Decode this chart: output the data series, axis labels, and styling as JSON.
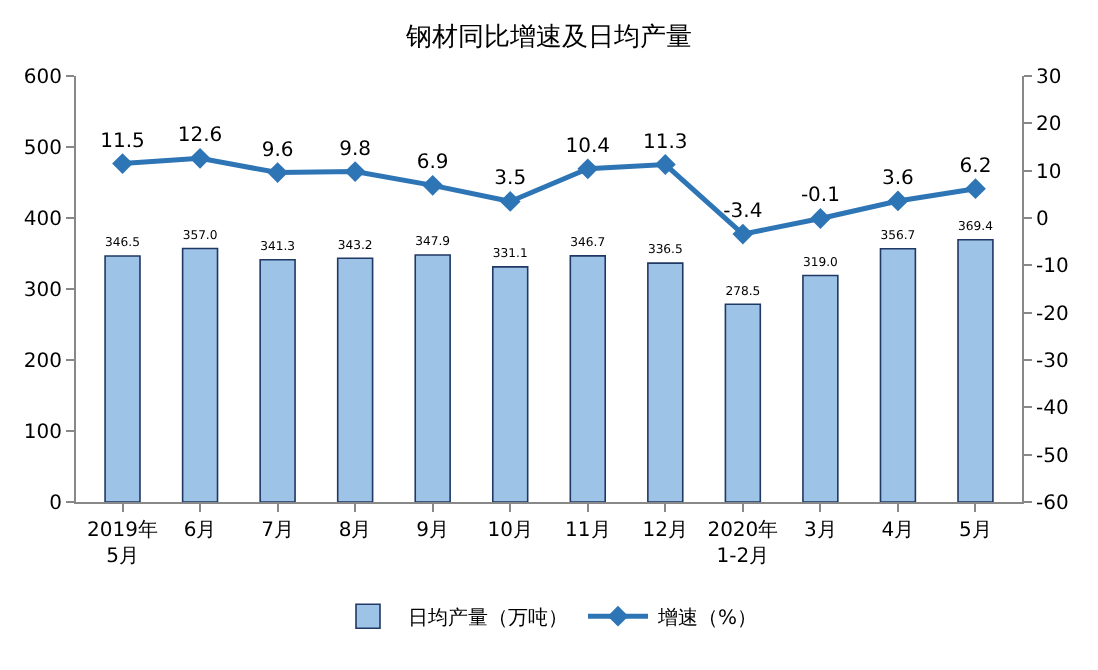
{
  "chart_data": {
    "type": "bar",
    "title": "钢材同比增速及日均产量",
    "categories": [
      "2019年\n5月",
      "6月",
      "7月",
      "8月",
      "9月",
      "10月",
      "11月",
      "12月",
      "2020年\n1-2月",
      "3月",
      "4月",
      "5月"
    ],
    "series": [
      {
        "name": "日均产量（万吨）",
        "color": "#9dc3e6",
        "values": [
          346.5,
          357.0,
          341.3,
          343.2,
          347.9,
          331.1,
          346.7,
          336.5,
          278.5,
          319.0,
          356.7,
          369.4
        ],
        "value_labels": [
          "346.5",
          "357.0",
          "341.3",
          "343.2",
          "347.9",
          "331.1",
          "346.7",
          "336.5",
          "278.5",
          "319.0",
          "356.7",
          "369.4"
        ]
      },
      {
        "name": "增速（%）",
        "type": "line",
        "axis": "y2",
        "color": "#2e75b6",
        "marker": "diamond",
        "values": [
          11.5,
          12.6,
          9.6,
          9.8,
          6.9,
          3.5,
          10.4,
          11.3,
          -3.4,
          -0.1,
          3.6,
          6.2
        ],
        "value_labels": [
          "11.5",
          "12.6",
          "9.6",
          "9.8",
          "6.9",
          "3.5",
          "10.4",
          "11.3",
          "-3.4",
          "-0.1",
          "3.6",
          "6.2"
        ]
      }
    ],
    "ylim": [
      0,
      600
    ],
    "yticks": [
      0,
      100,
      200,
      300,
      400,
      500,
      600
    ],
    "y2lim": [
      -60,
      30
    ],
    "y2ticks": [
      -60,
      -50,
      -40,
      -30,
      -20,
      -10,
      0,
      10,
      20,
      30
    ],
    "grid": false,
    "legend": "bottom"
  }
}
